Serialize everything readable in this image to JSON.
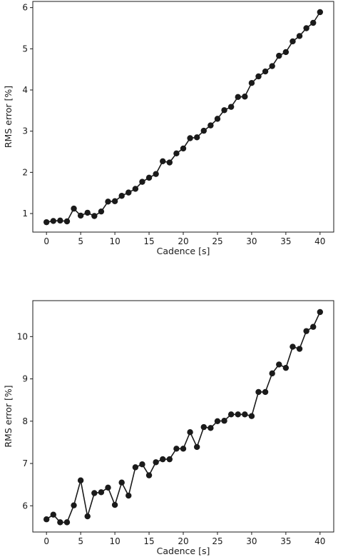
{
  "chart_data": [
    {
      "type": "line",
      "xlabel": "Cadence [s]",
      "ylabel": "RMS error [%]",
      "xlim": [
        -2,
        42
      ],
      "ylim": [
        0.55,
        6.15
      ],
      "xticks": [
        0,
        5,
        10,
        15,
        20,
        25,
        30,
        35,
        40
      ],
      "yticks": [
        1,
        2,
        3,
        4,
        5,
        6
      ],
      "grid": false,
      "series": [
        {
          "color": "#1a1a1a",
          "x": [
            0,
            1,
            2,
            3,
            4,
            5,
            6,
            7,
            8,
            9,
            10,
            11,
            12,
            13,
            14,
            15,
            16,
            17,
            18,
            19,
            20,
            21,
            22,
            23,
            24,
            25,
            26,
            27,
            28,
            29,
            30,
            31,
            32,
            33,
            34,
            35,
            36,
            37,
            38,
            39,
            40
          ],
          "values": [
            0.79,
            0.82,
            0.83,
            0.81,
            1.12,
            0.95,
            1.02,
            0.94,
            1.05,
            1.29,
            1.3,
            1.43,
            1.51,
            1.6,
            1.77,
            1.87,
            1.96,
            2.27,
            2.24,
            2.46,
            2.58,
            2.83,
            2.85,
            3.01,
            3.14,
            3.3,
            3.51,
            3.59,
            3.83,
            3.84,
            4.17,
            4.33,
            4.45,
            4.58,
            4.83,
            4.92,
            5.18,
            5.31,
            5.5,
            5.63,
            5.89
          ]
        }
      ]
    },
    {
      "type": "line",
      "xlabel": "Cadence [s]",
      "ylabel": "RMS error [%]",
      "xlim": [
        -2,
        42
      ],
      "ylim": [
        5.38,
        10.85
      ],
      "xticks": [
        0,
        5,
        10,
        15,
        20,
        25,
        30,
        35,
        40
      ],
      "yticks": [
        6,
        7,
        8,
        9,
        10
      ],
      "grid": false,
      "series": [
        {
          "color": "#1a1a1a",
          "x": [
            0,
            1,
            2,
            3,
            4,
            5,
            6,
            7,
            8,
            9,
            10,
            11,
            12,
            13,
            14,
            15,
            16,
            17,
            18,
            19,
            20,
            21,
            22,
            23,
            24,
            25,
            26,
            27,
            28,
            29,
            30,
            31,
            32,
            33,
            34,
            35,
            36,
            37,
            38,
            39,
            40
          ],
          "values": [
            5.68,
            5.79,
            5.61,
            5.61,
            6.01,
            6.6,
            5.75,
            6.3,
            6.32,
            6.43,
            6.02,
            6.55,
            6.24,
            6.91,
            6.98,
            6.72,
            7.03,
            7.1,
            7.1,
            7.35,
            7.35,
            7.74,
            7.39,
            7.86,
            7.84,
            8.0,
            8.01,
            8.16,
            8.16,
            8.16,
            8.12,
            8.69,
            8.69,
            9.13,
            9.34,
            9.26,
            9.76,
            9.71,
            10.13,
            10.23,
            10.58
          ]
        }
      ]
    }
  ]
}
